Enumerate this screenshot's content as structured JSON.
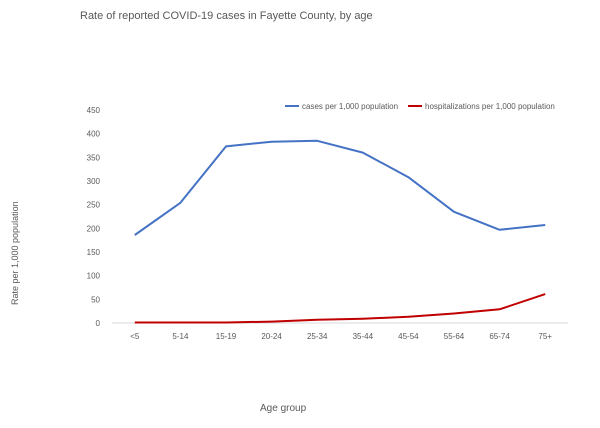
{
  "chart_data": {
    "type": "line",
    "title": "Rate of reported COVID-19 cases in Fayette County, by age",
    "xlabel": "Age group",
    "ylabel": "Rate per 1,000 population",
    "categories": [
      "<5",
      "5-14",
      "15-19",
      "20-24",
      "25-34",
      "35-44",
      "45-54",
      "55-64",
      "65-74",
      "75+"
    ],
    "ylim": [
      0,
      450
    ],
    "yticks": [
      0,
      50,
      100,
      150,
      200,
      250,
      300,
      350,
      400,
      450
    ],
    "grid": false,
    "legend_position": "top-right",
    "series": [
      {
        "name": "cases per 1,000 population",
        "color": "#4472c4",
        "values": [
          186,
          254,
          373,
          383,
          385,
          360,
          308,
          235,
          197,
          207
        ]
      },
      {
        "name": "hospitalizations per 1,000 population",
        "color": "#c00000",
        "values": [
          1,
          1,
          1,
          3,
          7,
          9,
          13,
          20,
          29,
          61
        ]
      }
    ]
  }
}
